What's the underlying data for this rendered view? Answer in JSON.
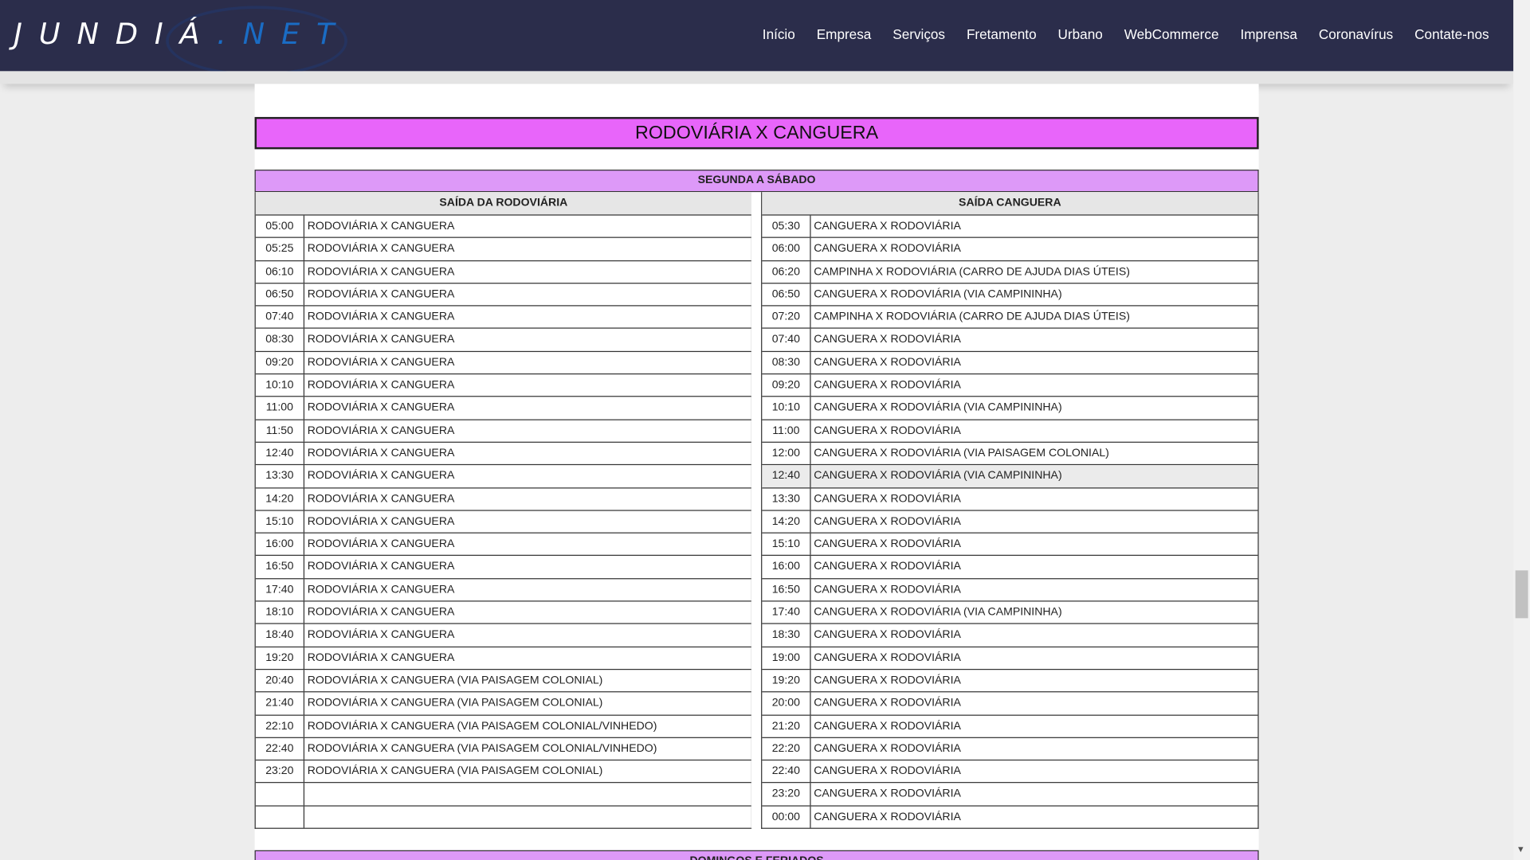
{
  "header": {
    "logo_main": "JUNDIÁ",
    "logo_suffix": ".NET",
    "nav": [
      "Início",
      "Empresa",
      "Serviços",
      "Fretamento",
      "Urbano",
      "WebCommerce",
      "Imprensa",
      "Coronavírus",
      "Contate-nos"
    ]
  },
  "page_title": "RODOVIÁRIA X CANGUERA",
  "section1": {
    "label": "SEGUNDA A SÁBADO",
    "left": {
      "header": "SAÍDA DA RODOVIÁRIA",
      "rows": [
        [
          "05:00",
          "RODOVIÁRIA X CANGUERA"
        ],
        [
          "05:25",
          "RODOVIÁRIA X CANGUERA"
        ],
        [
          "06:10",
          "RODOVIÁRIA X CANGUERA"
        ],
        [
          "06:50",
          "RODOVIÁRIA X CANGUERA"
        ],
        [
          "07:40",
          "RODOVIÁRIA X CANGUERA"
        ],
        [
          "08:30",
          "RODOVIÁRIA X CANGUERA"
        ],
        [
          "09:20",
          "RODOVIÁRIA X CANGUERA"
        ],
        [
          "10:10",
          "RODOVIÁRIA X CANGUERA"
        ],
        [
          "11:00",
          "RODOVIÁRIA X CANGUERA"
        ],
        [
          "11:50",
          "RODOVIÁRIA X CANGUERA"
        ],
        [
          "12:40",
          "RODOVIÁRIA X CANGUERA"
        ],
        [
          "13:30",
          "RODOVIÁRIA X CANGUERA"
        ],
        [
          "14:20",
          "RODOVIÁRIA X CANGUERA"
        ],
        [
          "15:10",
          "RODOVIÁRIA X CANGUERA"
        ],
        [
          "16:00",
          "RODOVIÁRIA X CANGUERA"
        ],
        [
          "16:50",
          "RODOVIÁRIA X CANGUERA"
        ],
        [
          "17:40",
          "RODOVIÁRIA X CANGUERA"
        ],
        [
          "18:10",
          "RODOVIÁRIA X CANGUERA"
        ],
        [
          "18:40",
          "RODOVIÁRIA X CANGUERA"
        ],
        [
          "19:20",
          "RODOVIÁRIA X CANGUERA"
        ],
        [
          "20:40",
          "RODOVIÁRIA X CANGUERA (VIA PAISAGEM COLONIAL)"
        ],
        [
          "21:40",
          "RODOVIÁRIA X CANGUERA (VIA PAISAGEM COLONIAL)"
        ],
        [
          "22:10",
          "RODOVIÁRIA X CANGUERA (VIA PAISAGEM COLONIAL/VINHEDO)"
        ],
        [
          "22:40",
          "RODOVIÁRIA X CANGUERA (VIA PAISAGEM COLONIAL/VINHEDO)"
        ],
        [
          "23:20",
          "RODOVIÁRIA X CANGUERA (VIA PAISAGEM COLONIAL)"
        ],
        [
          "",
          ""
        ],
        [
          "",
          ""
        ]
      ]
    },
    "right": {
      "header": "SAÍDA CANGUERA",
      "rows": [
        [
          "05:30",
          "CANGUERA X RODOVIÁRIA"
        ],
        [
          "06:00",
          "CANGUERA X RODOVIÁRIA"
        ],
        [
          "06:20",
          "CAMPINHA X RODOVIÁRIA (CARRO DE AJUDA DIAS ÚTEIS)"
        ],
        [
          "06:50",
          "CANGUERA X RODOVIÁRIA (VIA CAMPININHA)"
        ],
        [
          "07:20",
          "CAMPINHA X RODOVIÁRIA (CARRO DE AJUDA DIAS ÚTEIS)"
        ],
        [
          "07:40",
          "CANGUERA X RODOVIÁRIA"
        ],
        [
          "08:30",
          "CANGUERA X RODOVIÁRIA"
        ],
        [
          "09:20",
          "CANGUERA X RODOVIÁRIA"
        ],
        [
          "10:10",
          "CANGUERA X RODOVIÁRIA (VIA CAMPININHA)"
        ],
        [
          "11:00",
          "CANGUERA X RODOVIÁRIA"
        ],
        [
          "12:00",
          "CANGUERA X RODOVIÁRIA (VIA PAISAGEM COLONIAL)"
        ],
        [
          "12:40",
          "CANGUERA X RODOVIÁRIA (VIA CAMPININHA)"
        ],
        [
          "13:30",
          "CANGUERA X RODOVIÁRIA"
        ],
        [
          "14:20",
          "CANGUERA X RODOVIÁRIA"
        ],
        [
          "15:10",
          "CANGUERA X RODOVIÁRIA"
        ],
        [
          "16:00",
          "CANGUERA X RODOVIÁRIA"
        ],
        [
          "16:50",
          "CANGUERA X RODOVIÁRIA"
        ],
        [
          "17:40",
          "CANGUERA X RODOVIÁRIA (VIA CAMPININHA)"
        ],
        [
          "18:30",
          "CANGUERA X RODOVIÁRIA"
        ],
        [
          "19:00",
          "CANGUERA X RODOVIÁRIA"
        ],
        [
          "19:20",
          "CANGUERA X RODOVIÁRIA"
        ],
        [
          "20:00",
          "CANGUERA X RODOVIÁRIA"
        ],
        [
          "21:20",
          "CANGUERA X RODOVIÁRIA"
        ],
        [
          "22:20",
          "CANGUERA X RODOVIÁRIA"
        ],
        [
          "22:40",
          "CANGUERA X RODOVIÁRIA"
        ],
        [
          "23:20",
          "CANGUERA X RODOVIÁRIA"
        ],
        [
          "00:00",
          "CANGUERA X RODOVIÁRIA"
        ]
      ],
      "highlighted_row": "12:40"
    }
  },
  "section2": {
    "label": "DOMINGOS E FERIADOS"
  },
  "colors": {
    "header_bg": "#2b2d4b",
    "title_bg": "#e865fa",
    "section_bg": "#dd99f8",
    "logo_accent": "#1a6cc4"
  }
}
